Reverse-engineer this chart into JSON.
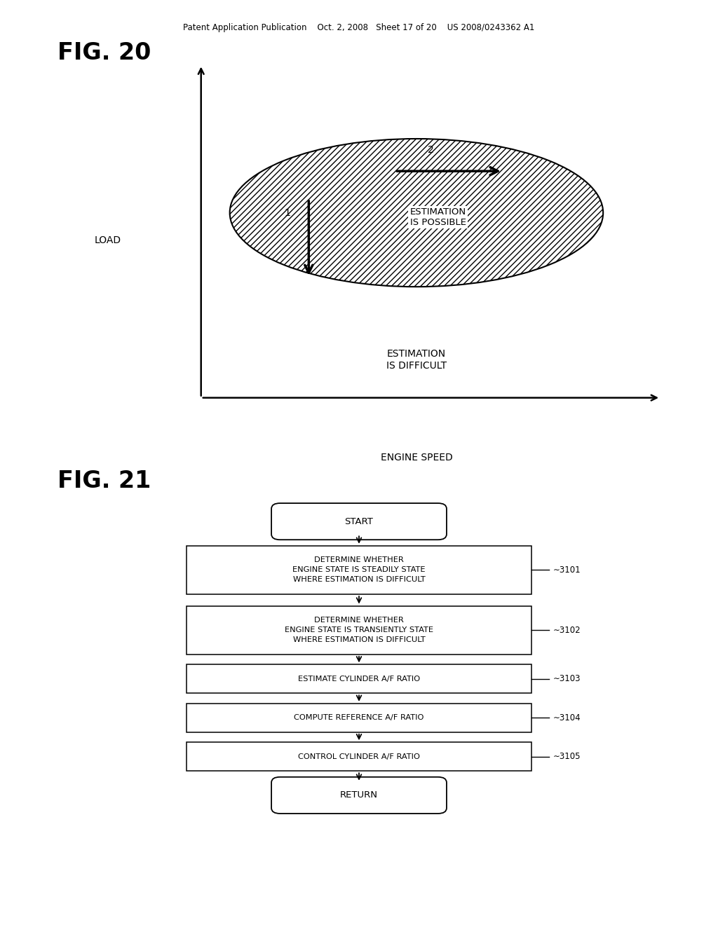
{
  "bg_color": "#ffffff",
  "header_text": "Patent Application Publication    Oct. 2, 2008   Sheet 17 of 20    US 2008/0243362 A1",
  "fig20_title": "FIG. 20",
  "fig21_title": "FIG. 21",
  "label_load": "LOAD",
  "label_engine_speed": "ENGINE SPEED",
  "label_estimation_possible": "ESTIMATION\nIS POSSIBLE",
  "label_estimation_difficult": "ESTIMATION\nIS DIFFICULT",
  "flowchart_boxes": [
    {
      "text": "DETERMINE WHETHER\nENGINE STATE IS STEADILY STATE\nWHERE ESTIMATION IS DIFFICULT",
      "label": "3101"
    },
    {
      "text": "DETERMINE WHETHER\nENGINE STATE IS TRANSIENTLY STATE\nWHERE ESTIMATION IS DIFFICULT",
      "label": "3102"
    },
    {
      "text": "ESTIMATE CYLINDER A/F RATIO",
      "label": "3103"
    },
    {
      "text": "COMPUTE REFERENCE A/F RATIO",
      "label": "3104"
    },
    {
      "text": "CONTROL CYLINDER A/F RATIO",
      "label": "3105"
    }
  ],
  "start_text": "START",
  "return_text": "RETURN"
}
